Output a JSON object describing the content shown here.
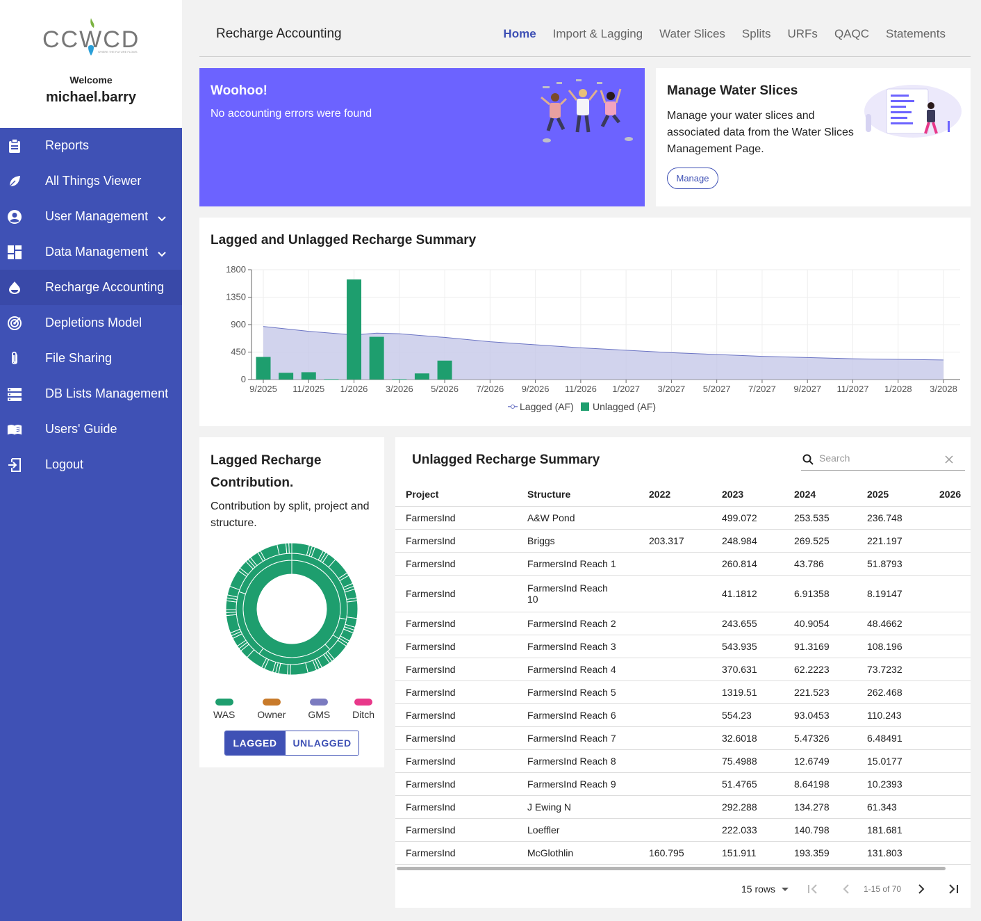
{
  "sidebar": {
    "logo_text": "CCWCD",
    "logo_tagline": "WHERE THE FUTURE FLOWS",
    "welcome": "Welcome",
    "username": "michael.barry",
    "items": [
      {
        "label": "Reports",
        "icon": "clipboard-icon"
      },
      {
        "label": "All Things Viewer",
        "icon": "leaf-icon"
      },
      {
        "label": "User Management",
        "icon": "account-circle-icon",
        "expandable": true
      },
      {
        "label": "Data Management",
        "icon": "dashboard-icon",
        "expandable": true
      },
      {
        "label": "Recharge Accounting",
        "icon": "water-drop-icon",
        "active": true
      },
      {
        "label": "Depletions Model",
        "icon": "target-icon"
      },
      {
        "label": "File Sharing",
        "icon": "paperclip-icon"
      },
      {
        "label": "DB Lists Management",
        "icon": "storage-icon"
      },
      {
        "label": "Users' Guide",
        "icon": "book-icon"
      },
      {
        "label": "Logout",
        "icon": "logout-icon"
      }
    ]
  },
  "header": {
    "title": "Recharge Accounting",
    "tabs": [
      "Home",
      "Import & Lagging",
      "Water Slices",
      "Splits",
      "URFs",
      "QAQC",
      "Statements"
    ],
    "active_tab": "Home"
  },
  "woohoo": {
    "title": "Woohoo!",
    "message": "No accounting errors were found"
  },
  "manage_card": {
    "title": "Manage Water Slices",
    "description": "Manage your water slices and associated data from the Water Slices Management Page.",
    "button": "Manage"
  },
  "chart_card": {
    "title": "Lagged and Unlagged Recharge Summary"
  },
  "chart_data": {
    "type": "bar",
    "title": "Lagged and Unlagged Recharge Summary",
    "ylim": [
      0,
      1800
    ],
    "yticks": [
      0,
      450,
      900,
      1350,
      1800
    ],
    "xticks": [
      "9/2025",
      "11/2025",
      "1/2026",
      "3/2026",
      "5/2026",
      "7/2026",
      "9/2026",
      "11/2026",
      "1/2027",
      "3/2027",
      "5/2027",
      "7/2027",
      "9/2027",
      "11/2027",
      "1/2028",
      "3/2028"
    ],
    "series": [
      {
        "name": "Lagged (AF)",
        "type": "area",
        "color": "#6b74c4",
        "x": [
          "9/2025",
          "11/2025",
          "1/2026",
          "2/2026",
          "3/2026",
          "5/2026",
          "7/2026",
          "9/2026",
          "11/2026",
          "1/2027",
          "3/2027",
          "5/2027",
          "7/2027",
          "9/2027",
          "11/2027",
          "1/2028",
          "3/2028"
        ],
        "values": [
          870,
          790,
          730,
          760,
          750,
          690,
          620,
          570,
          520,
          480,
          440,
          410,
          380,
          360,
          340,
          330,
          320
        ]
      },
      {
        "name": "Unlagged (AF)",
        "type": "bar",
        "color": "#1e9e6e",
        "x": [
          "9/2025",
          "10/2025",
          "11/2025",
          "12/2025",
          "1/2026",
          "2/2026",
          "3/2026",
          "4/2026",
          "5/2026"
        ],
        "values": [
          370,
          110,
          120,
          5,
          1640,
          700,
          5,
          100,
          310
        ]
      }
    ],
    "legend": "bottom-center"
  },
  "donut_card": {
    "title": "Lagged Recharge Contribution.",
    "subtitle": "Contribution by split, project and structure.",
    "legend": [
      {
        "label": "WAS",
        "color": "#1e9e6e"
      },
      {
        "label": "Owner",
        "color": "#c87a2a"
      },
      {
        "label": "GMS",
        "color": "#7b7bc0"
      },
      {
        "label": "Ditch",
        "color": "#e8388a"
      }
    ],
    "toggle": {
      "lagged": "LAGGED",
      "unlagged": "UNLAGGED",
      "selected": "LAGGED"
    }
  },
  "table_card": {
    "title": "Unlagged Recharge Summary",
    "search_placeholder": "Search",
    "columns": [
      "Project",
      "Structure",
      "2022",
      "2023",
      "2024",
      "2025",
      "2026"
    ],
    "rows": [
      [
        "FarmersInd",
        "A&W Pond",
        "",
        "499.072",
        "253.535",
        "236.748",
        ""
      ],
      [
        "FarmersInd",
        "Briggs",
        "203.317",
        "248.984",
        "269.525",
        "221.197",
        ""
      ],
      [
        "FarmersInd",
        "FarmersInd Reach 1",
        "",
        "260.814",
        "43.786",
        "51.8793",
        ""
      ],
      [
        "FarmersInd",
        "FarmersInd Reach 10",
        "",
        "41.1812",
        "6.91358",
        "8.19147",
        ""
      ],
      [
        "FarmersInd",
        "FarmersInd Reach 2",
        "",
        "243.655",
        "40.9054",
        "48.4662",
        ""
      ],
      [
        "FarmersInd",
        "FarmersInd Reach 3",
        "",
        "543.935",
        "91.3169",
        "108.196",
        ""
      ],
      [
        "FarmersInd",
        "FarmersInd Reach 4",
        "",
        "370.631",
        "62.2223",
        "73.7232",
        ""
      ],
      [
        "FarmersInd",
        "FarmersInd Reach 5",
        "",
        "1319.51",
        "221.523",
        "262.468",
        ""
      ],
      [
        "FarmersInd",
        "FarmersInd Reach 6",
        "",
        "554.23",
        "93.0453",
        "110.243",
        ""
      ],
      [
        "FarmersInd",
        "FarmersInd Reach 7",
        "",
        "32.6018",
        "5.47326",
        "6.48491",
        ""
      ],
      [
        "FarmersInd",
        "FarmersInd Reach 8",
        "",
        "75.4988",
        "12.6749",
        "15.0177",
        ""
      ],
      [
        "FarmersInd",
        "FarmersInd Reach 9",
        "",
        "51.4765",
        "8.64198",
        "10.2393",
        ""
      ],
      [
        "FarmersInd",
        "J Ewing N",
        "",
        "292.288",
        "134.278",
        "61.343",
        ""
      ],
      [
        "FarmersInd",
        "Loeffler",
        "",
        "222.033",
        "140.798",
        "181.681",
        ""
      ],
      [
        "FarmersInd",
        "McGlothlin",
        "160.795",
        "151.911",
        "193.359",
        "131.803",
        ""
      ]
    ],
    "pager": {
      "rows_label": "15 rows",
      "info": "1-15 of 70"
    }
  }
}
